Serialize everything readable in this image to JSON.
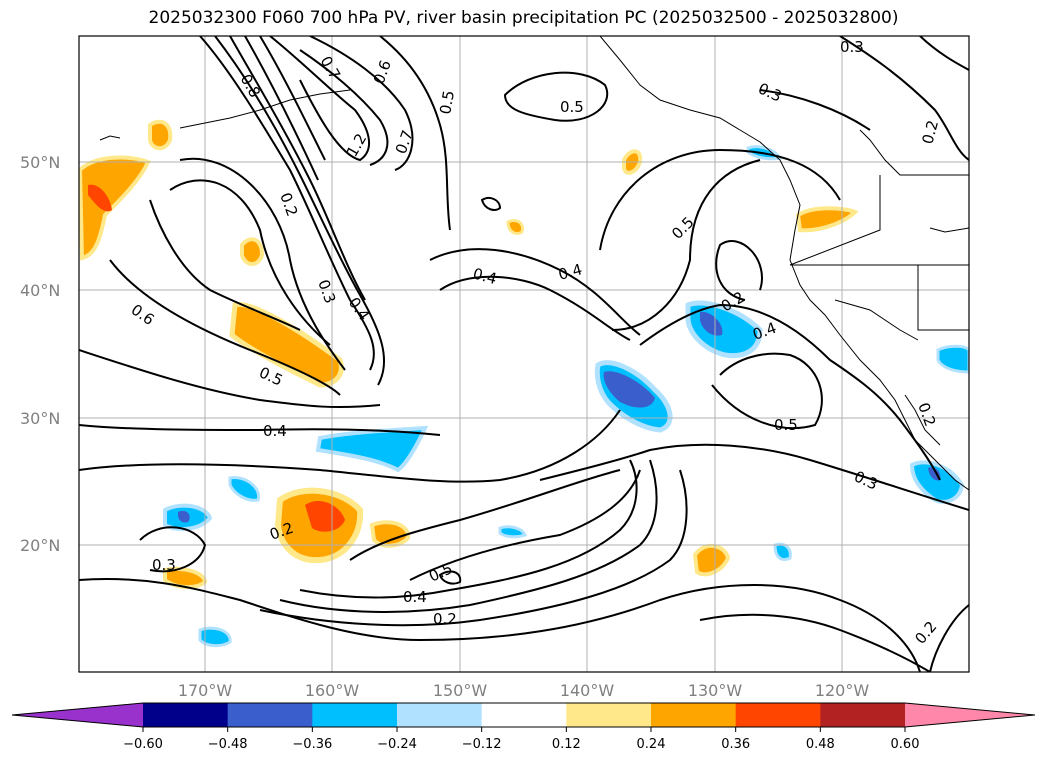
{
  "title": "2025032300 F060 700 hPa PV, river basin precipitation PC (2025032500 - 2025032800)",
  "lat_labels": [
    "50°N",
    "40°N",
    "30°N",
    "20°N"
  ],
  "lon_labels": [
    "170°W",
    "160°W",
    "150°W",
    "140°W",
    "130°W",
    "120°W"
  ],
  "contour_labels": [
    "0.8",
    "0.7",
    "0.6",
    "1.2",
    "0.7",
    "0.5",
    "0.5",
    "0.3",
    "0.4",
    "0.2",
    "0.2",
    "0.3",
    "0.4",
    "0.6",
    "0.5",
    "0.4",
    "0.4",
    "0.5",
    "0.2",
    "0.4",
    "0.5",
    "0.3",
    "0.3",
    "0.2",
    "0.2",
    "0.5",
    "0.4",
    "0.2",
    "0.3",
    "0.2"
  ],
  "colorbar": {
    "ticks": [
      "−0.60",
      "−0.48",
      "−0.36",
      "−0.24",
      "−0.12",
      "0.12",
      "0.24",
      "0.36",
      "0.48",
      "0.60"
    ],
    "colors": [
      "#9932cc",
      "#00008b",
      "#3a5fcd",
      "#00bfff",
      "#b0e2ff",
      "#ffffff",
      "#ffe88a",
      "#ffa500",
      "#ff4500",
      "#b22222",
      "#ff88aa"
    ]
  }
}
